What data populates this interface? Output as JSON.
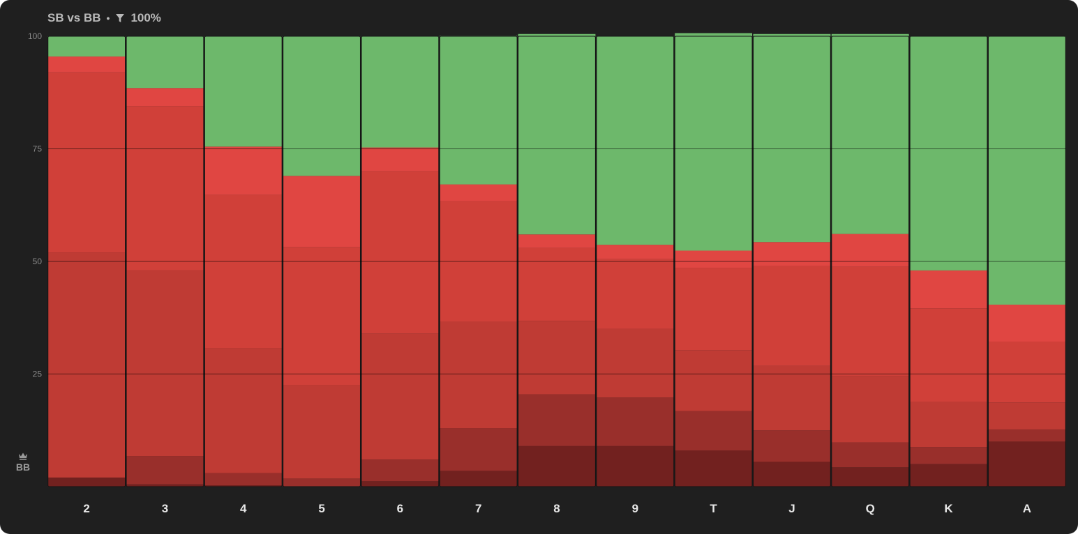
{
  "header": {
    "title": "SB vs BB",
    "separator": "•",
    "filter_icon": "filter-icon",
    "filter_value": "100%"
  },
  "player_label": {
    "icon": "crown-icon",
    "text": "BB"
  },
  "colors": {
    "background": "#1f1f1f",
    "green": "#6db86b",
    "bright_red": "#e04642",
    "red": "#d04039",
    "mid_red": "#bf3b34",
    "dark_red": "#992f2b",
    "darkest_red": "#72211f"
  },
  "chart_data": {
    "type": "bar",
    "stacked": true,
    "categories": [
      "2",
      "3",
      "4",
      "5",
      "6",
      "7",
      "8",
      "9",
      "T",
      "J",
      "Q",
      "K",
      "A"
    ],
    "ylim": [
      0,
      100
    ],
    "yticks": [
      25,
      50,
      75,
      100
    ],
    "grid": true,
    "series": [
      {
        "color": "#72211f",
        "values": [
          2,
          0.5,
          0.3,
          0,
          1.2,
          3.5,
          9,
          9,
          8,
          5.5,
          4.3,
          5,
          10
        ]
      },
      {
        "color": "#992f2b",
        "values": [
          0,
          6.3,
          2.7,
          1.8,
          4.8,
          9.5,
          11.5,
          10.8,
          8.8,
          7,
          5.5,
          3.8,
          2.7
        ]
      },
      {
        "color": "#bf3b34",
        "values": [
          50,
          41.2,
          27.8,
          20.8,
          28,
          23.6,
          16.3,
          15.2,
          13.5,
          14.3,
          14.8,
          10,
          6
        ]
      },
      {
        "color": "#d04039",
        "values": [
          40,
          36.5,
          34,
          30.6,
          36,
          26.8,
          16.2,
          15.5,
          18.3,
          22.2,
          24.2,
          20.8,
          13.5
        ]
      },
      {
        "color": "#e04642",
        "values": [
          3.5,
          4,
          10.7,
          15.8,
          5.3,
          3.7,
          3,
          3.2,
          3.8,
          5.3,
          7.3,
          8.4,
          8.2
        ]
      },
      {
        "color": "#6db86b",
        "values": [
          4.5,
          11.5,
          24.5,
          31,
          24.7,
          33,
          44.5,
          46.3,
          48.3,
          46.2,
          44.4,
          52,
          59.6
        ]
      }
    ]
  }
}
